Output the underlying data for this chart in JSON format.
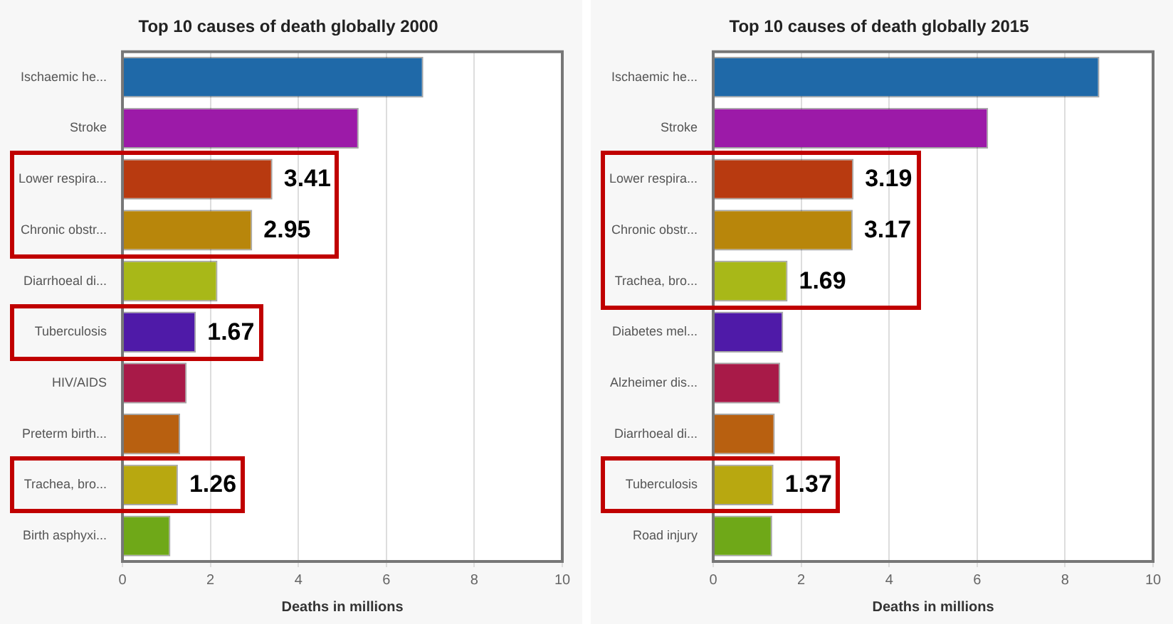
{
  "chart_data": [
    {
      "type": "bar",
      "orientation": "horizontal",
      "title": "Top 10 causes of death globally 2000",
      "xlabel": "Deaths in millions",
      "categories": [
        "Ischaemic he...",
        "Stroke",
        "Lower respira...",
        "Chronic obstr...",
        "Diarrhoeal di...",
        "Tuberculosis",
        "HIV/AIDS",
        "Preterm birth...",
        "Trachea, bro...",
        "Birth asphyxi..."
      ],
      "values": [
        6.84,
        5.37,
        3.41,
        2.95,
        2.16,
        1.67,
        1.46,
        1.31,
        1.26,
        1.09
      ],
      "value_labels": [
        null,
        null,
        "3.41",
        "2.95",
        null,
        "1.67",
        null,
        null,
        "1.26",
        null
      ],
      "colors": [
        "#1f69a8",
        "#9c1aa8",
        "#b83a10",
        "#b8860b",
        "#a8b818",
        "#4f1aa8",
        "#a81a48",
        "#b86010",
        "#b8a810",
        "#6fa818"
      ],
      "xlim": [
        0,
        10
      ],
      "xticks": [
        0,
        2,
        4,
        6,
        8,
        10
      ],
      "grid": "x"
    },
    {
      "type": "bar",
      "orientation": "horizontal",
      "title": "Top 10 causes of death globally 2015",
      "xlabel": "Deaths in millions",
      "categories": [
        "Ischaemic he...",
        "Stroke",
        "Lower respira...",
        "Chronic obstr...",
        "Trachea, bro...",
        "Diabetes mel...",
        "Alzheimer dis...",
        "Diarrhoeal di...",
        "Tuberculosis",
        "Road injury"
      ],
      "values": [
        8.78,
        6.25,
        3.19,
        3.17,
        1.69,
        1.59,
        1.52,
        1.4,
        1.37,
        1.34
      ],
      "value_labels": [
        null,
        null,
        "3.19",
        "3.17",
        "1.69",
        null,
        null,
        null,
        "1.37",
        null
      ],
      "colors": [
        "#1f69a8",
        "#9c1aa8",
        "#b83a10",
        "#b8860b",
        "#a8b818",
        "#4f1aa8",
        "#a81a48",
        "#b86010",
        "#b8a810",
        "#6fa818"
      ],
      "xlim": [
        0,
        10
      ],
      "xticks": [
        0,
        2,
        4,
        6,
        8,
        10
      ],
      "grid": "x"
    }
  ]
}
